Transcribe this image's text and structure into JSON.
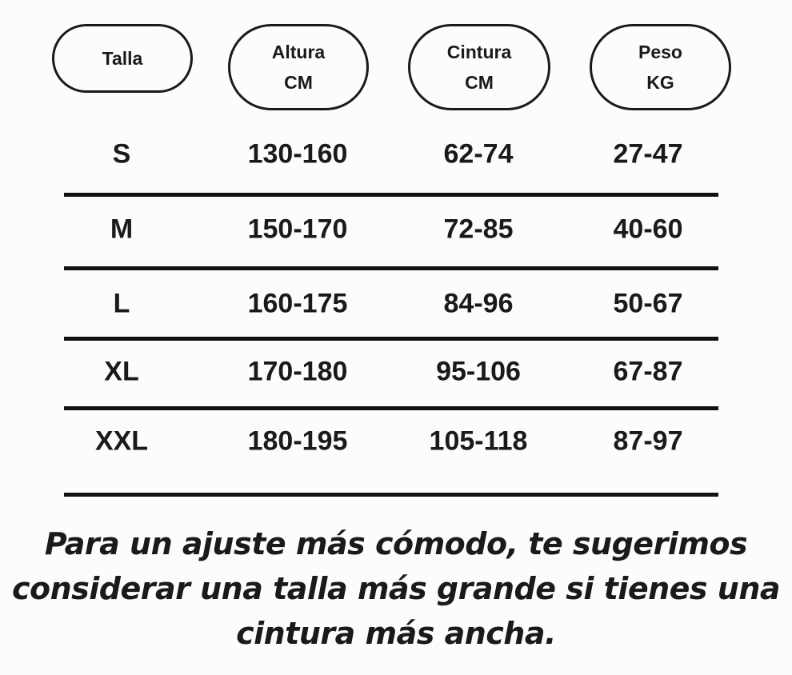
{
  "headers": [
    {
      "line1": "Talla",
      "line2": ""
    },
    {
      "line1": "Altura",
      "line2": "CM"
    },
    {
      "line1": "Cintura",
      "line2": "CM"
    },
    {
      "line1": "Peso",
      "line2": "KG"
    }
  ],
  "rows": [
    [
      "S",
      "130-160",
      "62-74",
      "27-47"
    ],
    [
      "M",
      "150-170",
      "72-85",
      "40-60"
    ],
    [
      "L",
      "160-175",
      "84-96",
      "50-67"
    ],
    [
      "XL",
      "170-180",
      "95-106",
      "67-87"
    ],
    [
      "XXL",
      "180-195",
      "105-118",
      "87-97"
    ]
  ],
  "note": [
    "Para un ajuste más cómodo, te sugerimos",
    "considerar una talla más grande si tienes una",
    "cintura más ancha."
  ]
}
